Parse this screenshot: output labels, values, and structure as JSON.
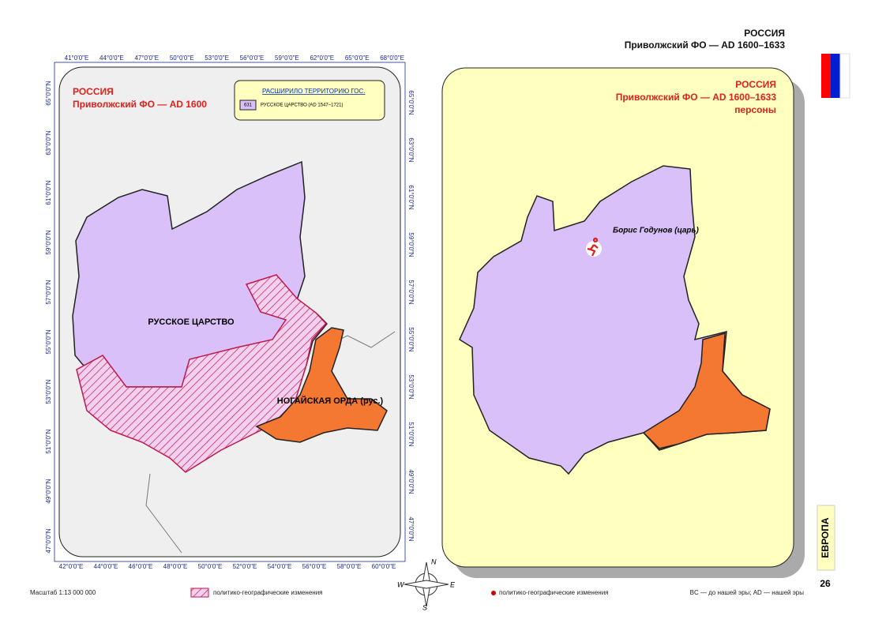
{
  "header": {
    "title": "РОССИЯ",
    "subtitle": "Приволжский ФО — AD 1600–1633"
  },
  "left_map": {
    "title": "РОССИЯ",
    "subtitle": "Приволжский ФО — AD 1600",
    "legend": {
      "heading": "РАСШИРИЛО ТЕРРИТОРИЮ ГОС.",
      "code": "631",
      "item": "РУССКОЕ ЦАРСТВО (AD 1547–1721)"
    },
    "top_ticks": [
      "41°0'0\"E",
      "44°0'0\"E",
      "47°0'0\"E",
      "50°0'0\"E",
      "53°0'0\"E",
      "56°0'0\"E",
      "59°0'0\"E",
      "62°0'0\"E",
      "65°0'0\"E",
      "68°0'0\"E"
    ],
    "bottom_ticks": [
      "42°0'0\"E",
      "44°0'0\"E",
      "46°0'0\"E",
      "48°0'0\"E",
      "50°0'0\"E",
      "52°0'0\"E",
      "54°0'0\"E",
      "56°0'0\"E",
      "58°0'0\"E",
      "60°0'0\"E"
    ],
    "left_ticks": [
      "65°0'0\"N",
      "63°0'0\"N",
      "61°0'0\"N",
      "59°0'0\"N",
      "57°0'0\"N",
      "55°0'0\"N",
      "53°0'0\"N",
      "51°0'0\"N",
      "49°0'0\"N",
      "47°0'0\"N"
    ],
    "right_ticks": [
      "65°0'0\"N",
      "63°0'0\"N",
      "61°0'0\"N",
      "59°0'0\"N",
      "57°0'0\"N",
      "55°0'0\"N",
      "53°0'0\"N",
      "51°0'0\"N",
      "49°0'0\"N",
      "47°0'0\"N"
    ],
    "regions": [
      "РУССКОЕ ЦАРСТВО",
      "НОГАЙСКАЯ ОРДА (рус.)"
    ]
  },
  "right_map": {
    "title": "РОССИЯ",
    "subtitle": "Приволжский ФО — AD 1600–1633",
    "note": "персоны",
    "person": "Борис Годунов (царь)"
  },
  "compass": {
    "n": "N",
    "w": "W",
    "e": "E",
    "s": "S"
  },
  "footer": {
    "scale": "Масштаб 1:13 000 000",
    "legend_left": "политико-географические изменения",
    "legend_right": "политико-географические изменения",
    "era": "BC — до нашей эры; AD — нашей эры"
  },
  "side": {
    "section": "ЕВРОПА",
    "page": "26"
  }
}
